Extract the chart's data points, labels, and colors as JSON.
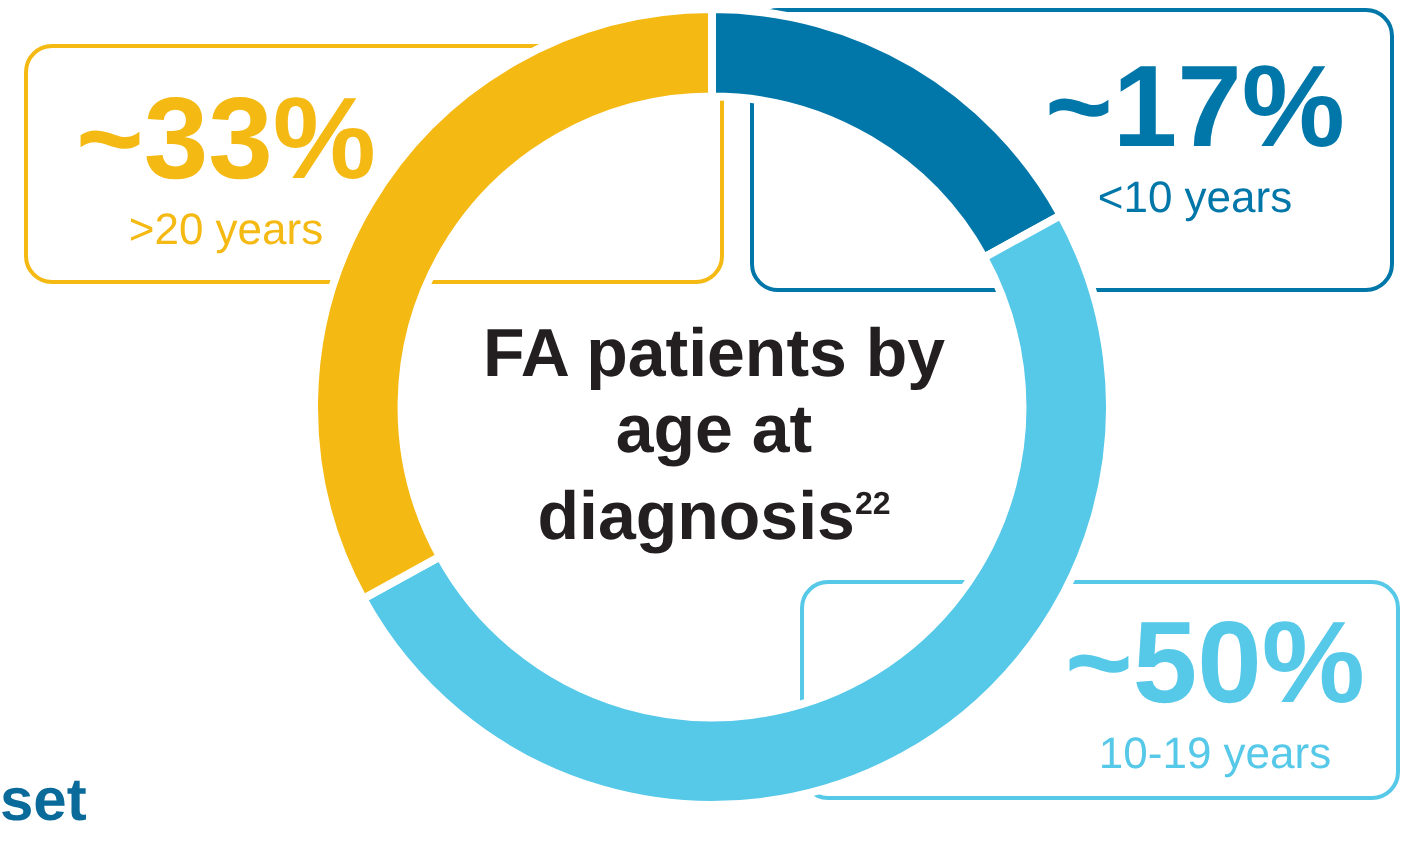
{
  "chart_data": {
    "type": "donut",
    "title": "FA patients by age at diagnosis$^{22}$",
    "categories": [
      "<10 years",
      "10-19 years",
      ">20 years"
    ],
    "values": [
      17,
      50,
      33
    ],
    "colors": [
      "#0077a8",
      "#56c8e8",
      "#f5b914"
    ],
    "value_labels": [
      "~17%",
      "~50%",
      "~33%"
    ],
    "annotations": [
      "set"
    ]
  }
}
